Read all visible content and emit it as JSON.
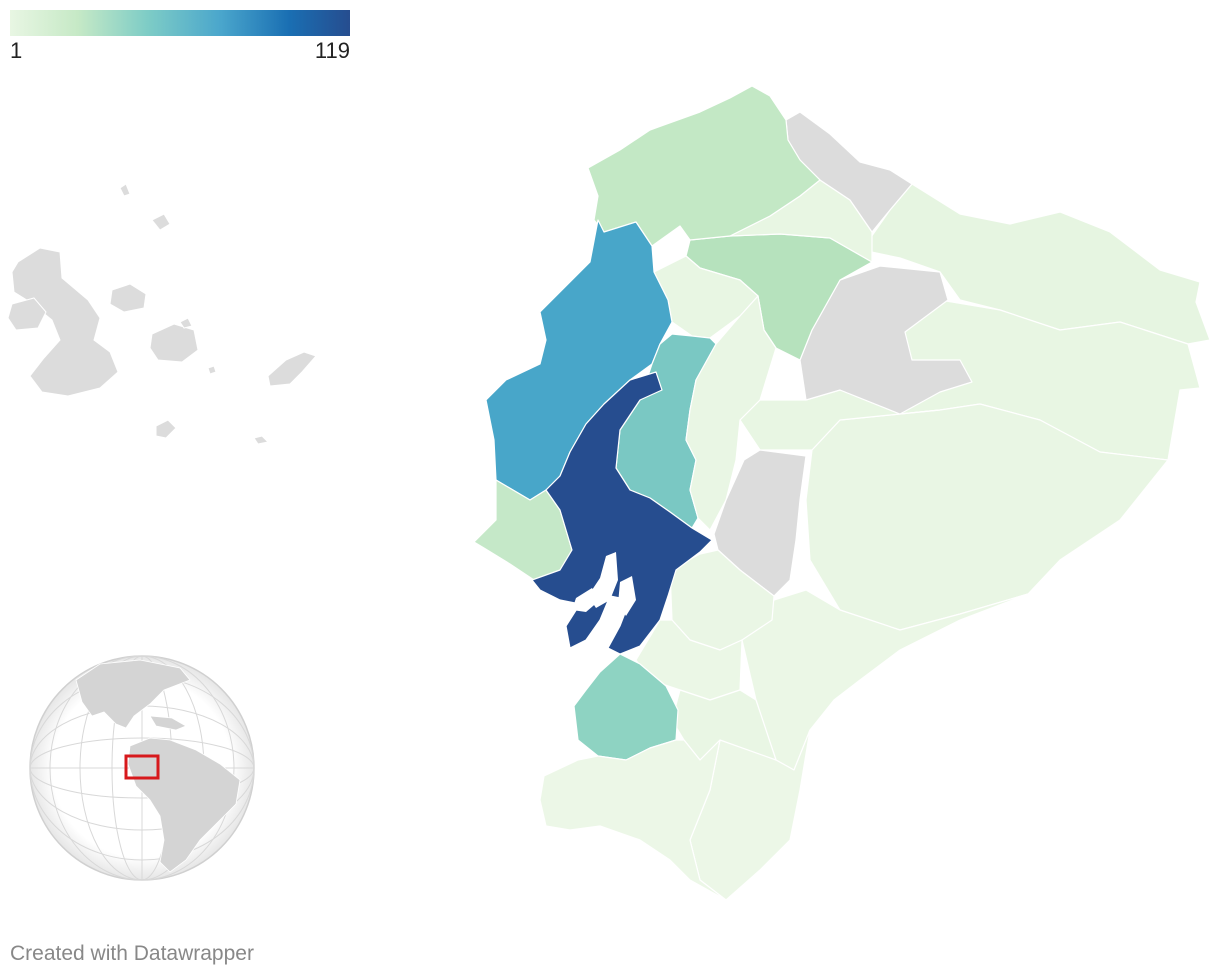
{
  "legend": {
    "min_label": "1",
    "max_label": "119",
    "min": 1,
    "max": 119,
    "colors": [
      "#e8f6e3",
      "#c6e9c6",
      "#7fcdc6",
      "#4aa6cc",
      "#1a6fb3",
      "#264d8f"
    ]
  },
  "no_data_color": "#dcdcdc",
  "footer": {
    "credit": "Created with Datawrapper"
  },
  "highlight_color": "#d7191c"
}
